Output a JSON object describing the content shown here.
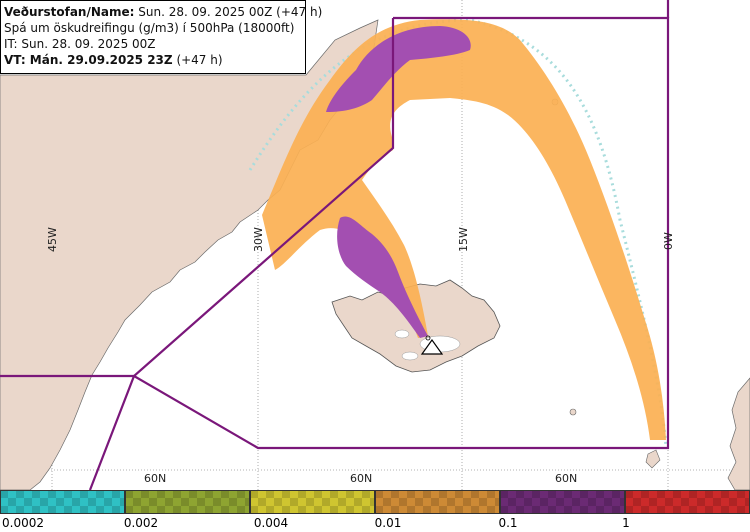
{
  "info": {
    "line1_label": "Veðurstofan/Name:",
    "line1_value": "Sun. 28. 09. 2025 00Z (+47 h)",
    "line2": "Spá um öskudreifingu (g/m3) í 500hPa (18000ft)",
    "line3": "IT: Sun. 28. 09. 2025 00Z",
    "line4_label": "VT: Mán. 29.09.2025 23Z",
    "line4_value": "(+47 h)"
  },
  "map": {
    "meridian_labels": [
      "45W",
      "30W",
      "15W",
      "0W"
    ],
    "parallel_labels": [
      "60N",
      "60N",
      "60N"
    ],
    "volcano_icon": "triangle-volcano-icon",
    "colors": {
      "land": "#ead7cb",
      "sea": "#ffffff",
      "graticule": "#9a9a9a",
      "boundary": "#7a177a",
      "ash_low": "#fbb052",
      "ash_high": "#a34fb1",
      "ash_trace": "#a8dcdc"
    }
  },
  "legend": {
    "colors": [
      "#2fc1c4",
      "#8ea431",
      "#cfc530",
      "#cd8a35",
      "#6b2a74",
      "#cc2a2a"
    ],
    "ticks": [
      "0.0002",
      "0.002",
      "0.004",
      "0.01",
      "0.1",
      "1"
    ]
  }
}
